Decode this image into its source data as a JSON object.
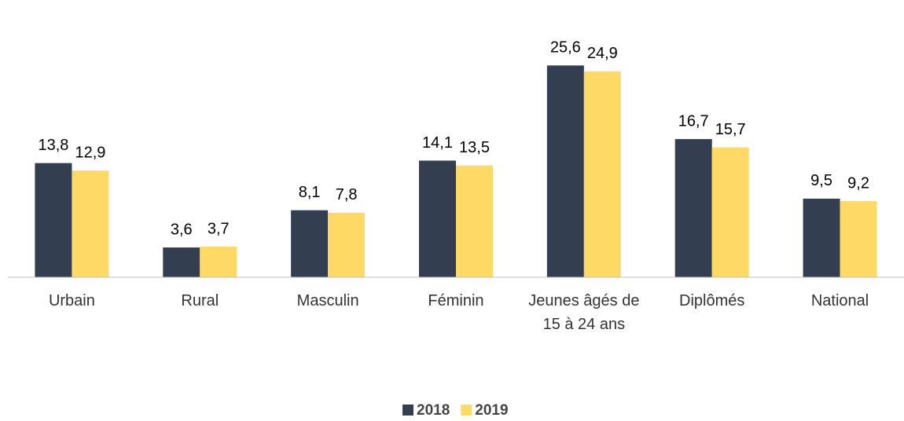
{
  "chart_data": {
    "type": "bar",
    "categories": [
      "Urbain",
      "Rural",
      "Masculin",
      "Féminin",
      "Jeunes âgés de 15 à 24 ans",
      "Diplômés",
      "National"
    ],
    "series": [
      {
        "name": "2018",
        "color": "#333f50",
        "values": [
          13.8,
          3.6,
          8.1,
          14.1,
          25.6,
          16.7,
          9.5
        ],
        "value_labels": [
          "13,8",
          "3,6",
          "8,1",
          "14,1",
          "25,6",
          "16,7",
          "9,5"
        ]
      },
      {
        "name": "2019",
        "color": "#ffd966",
        "values": [
          12.9,
          3.7,
          7.8,
          13.5,
          24.9,
          15.7,
          9.2
        ],
        "value_labels": [
          "12,9",
          "3,7",
          "7,8",
          "13,5",
          "24,9",
          "15,7",
          "9,2"
        ]
      }
    ],
    "ylim": [
      0,
      30
    ],
    "legend": "bottom"
  }
}
